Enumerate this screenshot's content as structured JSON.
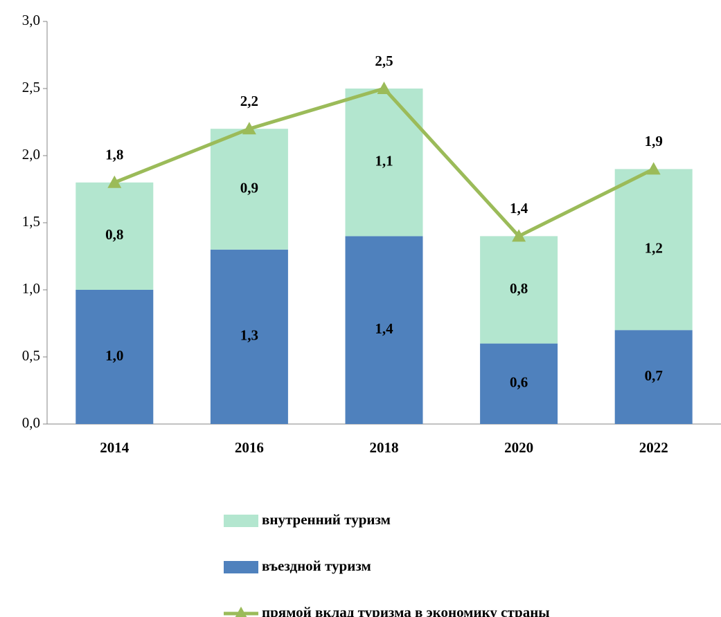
{
  "chart_data": {
    "type": "bar",
    "categories": [
      "2014",
      "2016",
      "2018",
      "2020",
      "2022"
    ],
    "series": [
      {
        "name": "внутренний туризм",
        "type": "bar",
        "color": "#b3e6cf",
        "values": [
          0.8,
          0.9,
          1.1,
          0.8,
          1.2
        ],
        "value_labels": [
          "0,8",
          "0,9",
          "1,1",
          "0,8",
          "1,2"
        ]
      },
      {
        "name": "въездной туризм",
        "type": "bar",
        "color": "#4f81bd",
        "values": [
          1.0,
          1.3,
          1.4,
          0.6,
          0.7
        ],
        "value_labels": [
          "1,0",
          "1,3",
          "1,4",
          "0,6",
          "0,7"
        ]
      },
      {
        "name": "прямой вклад туризма в экономику страны",
        "type": "line",
        "color": "#9bbb59",
        "values": [
          1.8,
          2.2,
          2.5,
          1.4,
          1.9
        ],
        "value_labels": [
          "1,8",
          "2,2",
          "2,5",
          "1,4",
          "1,9"
        ]
      }
    ],
    "ylim": [
      0,
      3
    ],
    "yticks": [
      {
        "value": 0,
        "label": "0,0"
      },
      {
        "value": 0.5,
        "label": "0,5"
      },
      {
        "value": 1,
        "label": "1,0"
      },
      {
        "value": 1.5,
        "label": "1,5"
      },
      {
        "value": 2,
        "label": "2,0"
      },
      {
        "value": 2.5,
        "label": "2,5"
      },
      {
        "value": 3,
        "label": "3,0"
      }
    ],
    "grid": false
  }
}
